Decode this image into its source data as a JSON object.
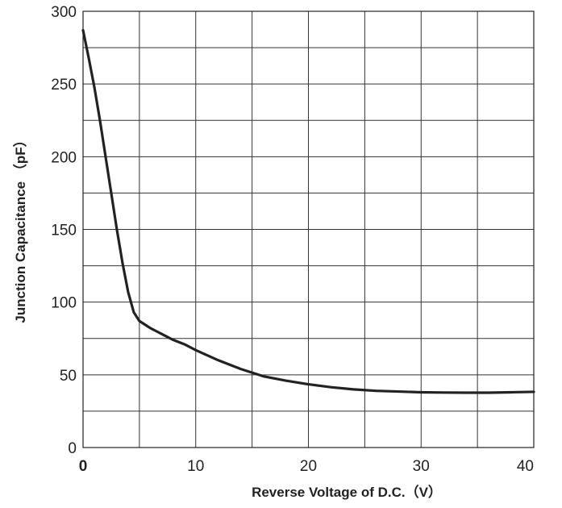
{
  "chart_data": {
    "type": "line",
    "xlabel": "Reverse Voltage of D.C.（V）",
    "ylabel": "Junction Capacitance （pF）",
    "xlim": [
      0,
      40
    ],
    "ylim": [
      0,
      300
    ],
    "x_ticks": [
      "0",
      "10",
      "20",
      "30",
      "40"
    ],
    "y_ticks": [
      "0",
      "50",
      "100",
      "150",
      "200",
      "250",
      "300"
    ],
    "grid": true,
    "grid_x_step": 5,
    "grid_y_step": 25,
    "line_color": "#222222",
    "series": [
      {
        "x": [
          0,
          0.5,
          1,
          1.5,
          2,
          2.5,
          3,
          3.5,
          4,
          4.5,
          5,
          6,
          7,
          8,
          9,
          10,
          12,
          14,
          16,
          18,
          20,
          22,
          24,
          26,
          28,
          30,
          32,
          34,
          36,
          38,
          40
        ],
        "y": [
          287,
          268,
          248,
          225,
          200,
          175,
          150,
          127,
          107,
          93,
          87,
          82,
          78,
          74,
          71,
          67,
          60,
          54,
          49,
          46,
          43.5,
          41.5,
          40,
          39,
          38.5,
          38,
          37.8,
          37.7,
          37.7,
          38,
          38.3
        ]
      }
    ]
  }
}
